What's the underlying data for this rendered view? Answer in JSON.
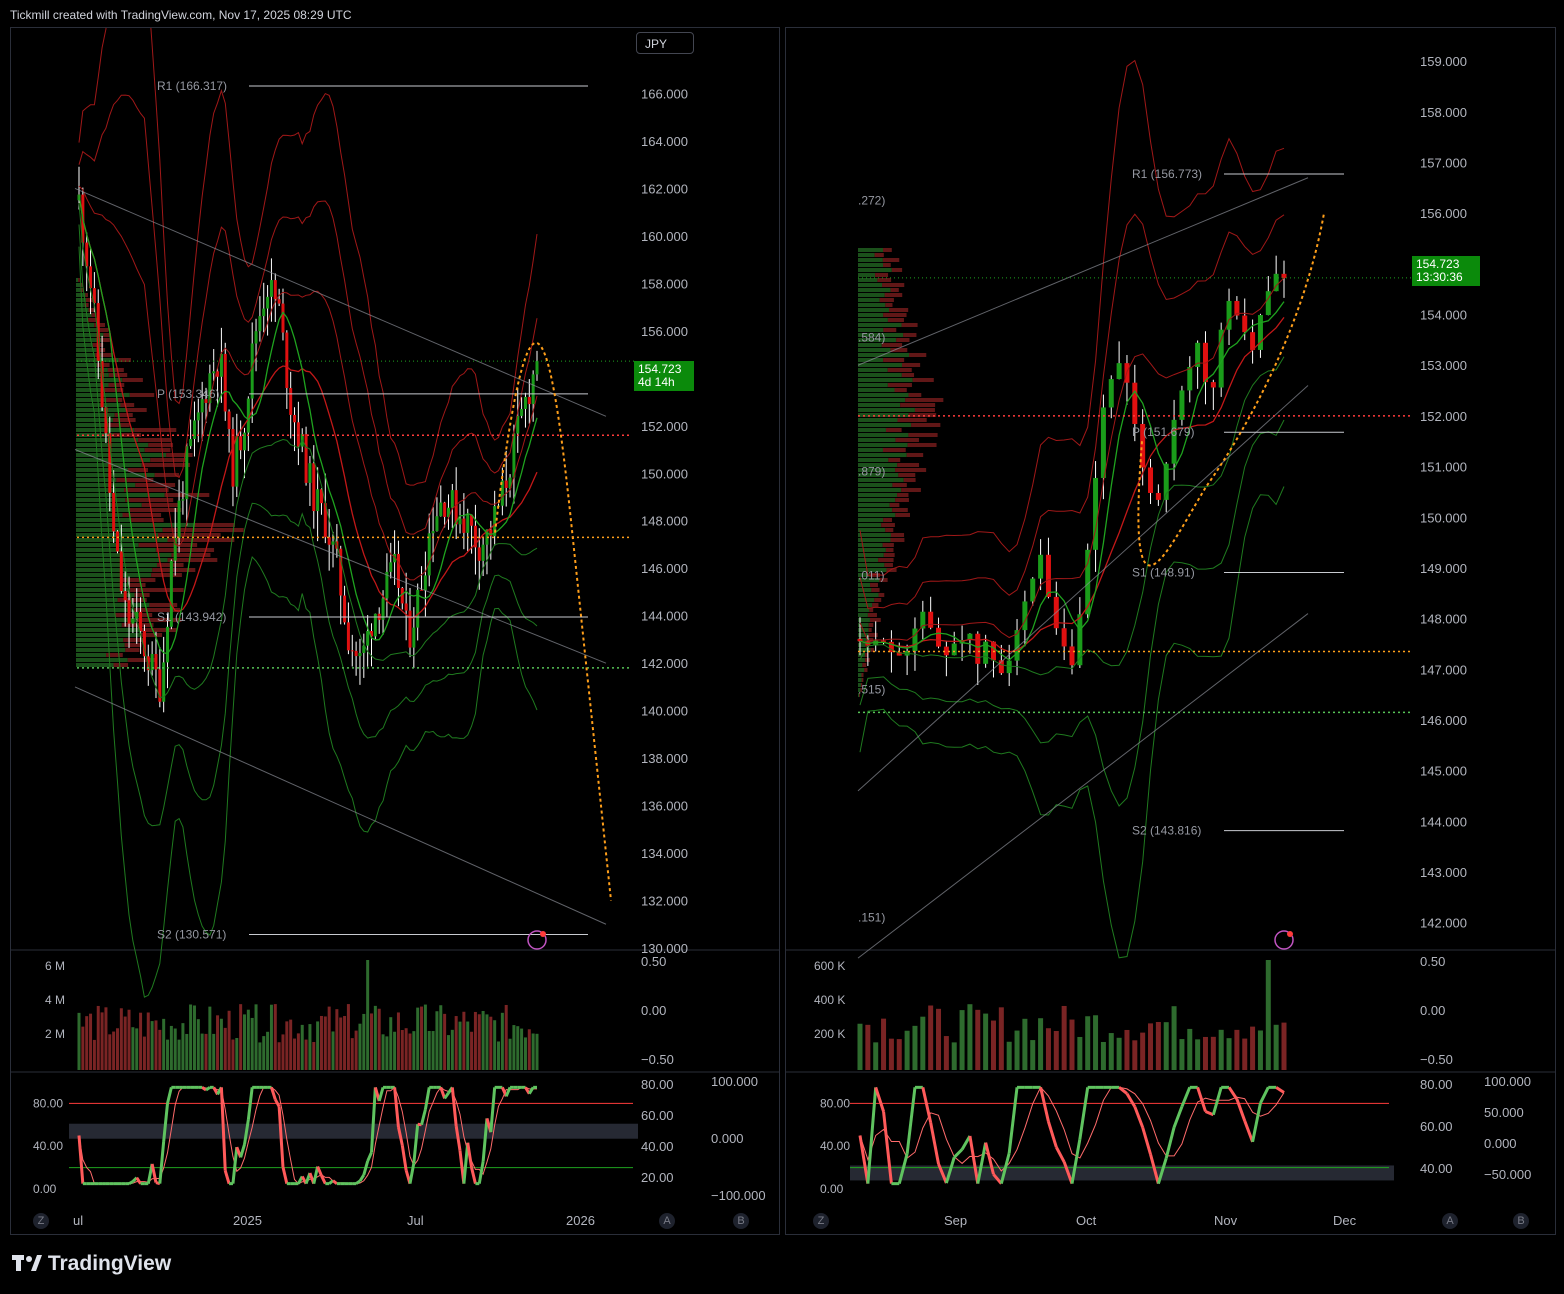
{
  "header": {
    "attribution": "Tickmill created with TradingView.com, Nov 17, 2025 08:29 UTC"
  },
  "logo": {
    "text": "TradingView",
    "icon": "tradingview-logo-icon"
  },
  "left_panel": {
    "symbol_button": "JPY",
    "price_label": "154.723",
    "countdown": "4d 14h",
    "price_axis": [
      "166.000",
      "164.000",
      "162.000",
      "160.000",
      "158.000",
      "156.000",
      "154.000",
      "152.000",
      "150.000",
      "148.000",
      "146.000",
      "144.000",
      "142.000",
      "140.000",
      "138.000",
      "136.000",
      "134.000",
      "132.000",
      "130.000"
    ],
    "levels": {
      "r1": "R1 (166.317)",
      "p": "P (153.346)",
      "s1": "S1 (143.942)",
      "s2": "S2 (130.571)"
    },
    "time_axis": [
      "ul",
      "2025",
      "Jul",
      "2026"
    ],
    "volume_axis": [
      "6 M",
      "4 M",
      "2 M"
    ],
    "vol_right_axis": [
      "0.50",
      "0.00",
      "−0.50"
    ],
    "osc_left_axis": [
      "80.00",
      "40.00",
      "0.00"
    ],
    "osc_mid_axis": [
      "80.00",
      "60.00",
      "40.00",
      "20.00"
    ],
    "osc_right_axis": [
      "100.000",
      "0.000",
      "−100.000"
    ],
    "buttons": {
      "z": "Z",
      "a": "A",
      "b": "B"
    }
  },
  "right_panel": {
    "price_label": "154.723",
    "countdown": "13:30:36",
    "price_axis": [
      "159.000",
      "158.000",
      "157.000",
      "156.000",
      "155.000",
      "154.000",
      "153.000",
      "152.000",
      "151.000",
      "150.000",
      "149.000",
      "148.000",
      "147.000",
      "146.000",
      "145.000",
      "144.000",
      "143.000",
      "142.000"
    ],
    "levels": {
      "r1": "R1 (156.773)",
      "p": "P (151.679)",
      "s1": "S1 (148.91)",
      "s2": "S2 (143.816)"
    },
    "fib_labels": [
      ".272)",
      ".584)",
      ".879)",
      ".011)",
      ".515)",
      ".151)"
    ],
    "time_axis": [
      "Sep",
      "Oct",
      "Nov",
      "Dec"
    ],
    "volume_axis": [
      "600 K",
      "400 K",
      "200 K"
    ],
    "vol_right_axis": [
      "0.50",
      "0.00",
      "−0.50"
    ],
    "osc_left_axis": [
      "80.00",
      "40.00",
      "0.00"
    ],
    "osc_mid_axis": [
      "80.00",
      "60.00",
      "40.00"
    ],
    "osc_right_axis": [
      "100.000",
      "50.000",
      "0.000",
      "−50.000"
    ],
    "buttons": {
      "z": "Z",
      "a": "A",
      "b": "B"
    }
  },
  "colors": {
    "up": "#1a9c1a",
    "down": "#e01010",
    "pivot_red": "#ff3b3b",
    "pivot_orange": "#ff9f1a",
    "pivot_green": "#57c357",
    "band_red": "#a01818",
    "band_green": "#1f7a1f"
  },
  "chart_data": [
    {
      "type": "candlestick",
      "panel": "left",
      "symbol": "JPY",
      "ylim": [
        130,
        168
      ],
      "x": [
        "ul",
        "2025",
        "Jul",
        "2026"
      ],
      "last_price": 154.723,
      "pivots": {
        "R1": 166.317,
        "P": 153.346,
        "S1": 143.942,
        "S2": 130.571
      },
      "close_path": [
        161.5,
        158,
        153,
        147,
        144,
        143.5,
        142,
        141,
        147,
        150,
        152,
        154,
        155,
        150,
        152,
        156,
        158,
        157,
        153,
        151,
        149,
        148,
        146,
        143,
        142,
        144,
        145,
        146,
        143,
        145,
        148,
        149,
        148.5,
        148,
        147,
        147.5,
        149,
        151,
        153,
        154.7
      ]
    },
    {
      "type": "candlestick",
      "panel": "right",
      "symbol": "JPY",
      "ylim": [
        141.5,
        159.3
      ],
      "x": [
        "Sep",
        "Oct",
        "Nov",
        "Dec"
      ],
      "last_price": 154.723,
      "pivots": {
        "R1": 156.773,
        "P": 151.679,
        "S1": 148.91,
        "S2": 143.816
      },
      "close_path": [
        147.6,
        147.2,
        147.8,
        147.4,
        147.0,
        147.9,
        148.2,
        147.5,
        147.3,
        147.6,
        147.8,
        147.1,
        147.5,
        146.9,
        147.3,
        147.9,
        148.4,
        149.2,
        148.0,
        147.4,
        147.1,
        148.2,
        150.3,
        152.2,
        153.1,
        152.7,
        151.6,
        150.8,
        150.2,
        151.3,
        152.1,
        152.8,
        153.4,
        152.1,
        153.6,
        154.3,
        153.9,
        153.2,
        154.2,
        154.8,
        154.723
      ]
    }
  ]
}
